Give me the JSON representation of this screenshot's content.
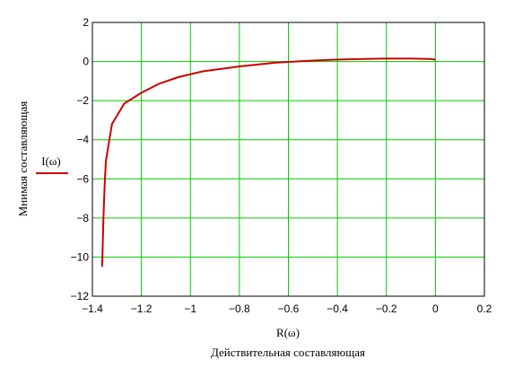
{
  "chart_data": {
    "type": "line",
    "xlim": [
      -1.4,
      0.2
    ],
    "ylim": [
      -12,
      2
    ],
    "grid": true,
    "x_ticks": [
      "−1.4",
      "−1.2",
      "−1",
      "−0.8",
      "−0.6",
      "−0.4",
      "−0.2",
      "0",
      "0.2"
    ],
    "y_ticks": [
      "2",
      "0",
      "−2",
      "−4",
      "−6",
      "−8",
      "−10",
      "−12"
    ],
    "xlabel_expr": "R(ω)",
    "xlabel_title": "Действительная составляющая",
    "ylabel_expr": "I(ω)",
    "ylabel_title": "Мнимая составляющая",
    "series": [
      {
        "color": "#cc0000",
        "points": [
          [
            -1.36,
            -10.5
          ],
          [
            -1.355,
            -8.0
          ],
          [
            -1.35,
            -6.3
          ],
          [
            -1.345,
            -5.1
          ],
          [
            -1.32,
            -3.2
          ],
          [
            -1.27,
            -2.15
          ],
          [
            -1.2,
            -1.6
          ],
          [
            -1.13,
            -1.15
          ],
          [
            -1.05,
            -0.8
          ],
          [
            -0.95,
            -0.5
          ],
          [
            -0.8,
            -0.25
          ],
          [
            -0.65,
            -0.05
          ],
          [
            -0.5,
            0.05
          ],
          [
            -0.4,
            0.1
          ],
          [
            -0.3,
            0.13
          ],
          [
            -0.2,
            0.15
          ],
          [
            -0.1,
            0.15
          ],
          [
            -0.02,
            0.13
          ],
          [
            0.0,
            0.1
          ]
        ]
      }
    ]
  },
  "colors": {
    "grid": "#00cc00",
    "curve": "#cc0000",
    "frame": "#000000"
  }
}
